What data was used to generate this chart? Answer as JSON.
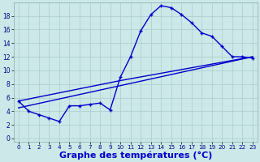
{
  "xlabel": "Graphe des températures (°C)",
  "background_color": "#cce8e8",
  "grid_color": "#aacccc",
  "line_color": "#0000cc",
  "xlim": [
    -0.5,
    23.5
  ],
  "ylim": [
    -0.5,
    20.0
  ],
  "yticks": [
    0,
    2,
    4,
    6,
    8,
    10,
    12,
    14,
    16,
    18
  ],
  "xticks": [
    0,
    1,
    2,
    3,
    4,
    5,
    6,
    7,
    8,
    9,
    10,
    11,
    12,
    13,
    14,
    15,
    16,
    17,
    18,
    19,
    20,
    21,
    22,
    23
  ],
  "curve1_x": [
    0,
    1,
    2,
    3,
    4,
    5,
    6,
    7,
    8,
    9,
    10,
    11,
    12,
    13,
    14,
    15,
    16,
    17,
    18,
    19,
    20,
    21,
    22,
    23
  ],
  "curve1_y": [
    5.5,
    4.0,
    3.5,
    3.0,
    2.5,
    4.8,
    4.8,
    5.0,
    5.2,
    4.2,
    9.0,
    12.0,
    15.8,
    18.2,
    19.5,
    19.2,
    18.2,
    17.0,
    15.5,
    15.0,
    13.5,
    12.0,
    12.0,
    11.8
  ],
  "curve2_x": [
    0,
    23
  ],
  "curve2_y": [
    4.5,
    12.0
  ],
  "curve3_x": [
    0,
    10,
    23
  ],
  "curve3_y": [
    5.5,
    8.5,
    12.0
  ],
  "xlabel_fontsize": 8,
  "tick_fontsize": 6
}
